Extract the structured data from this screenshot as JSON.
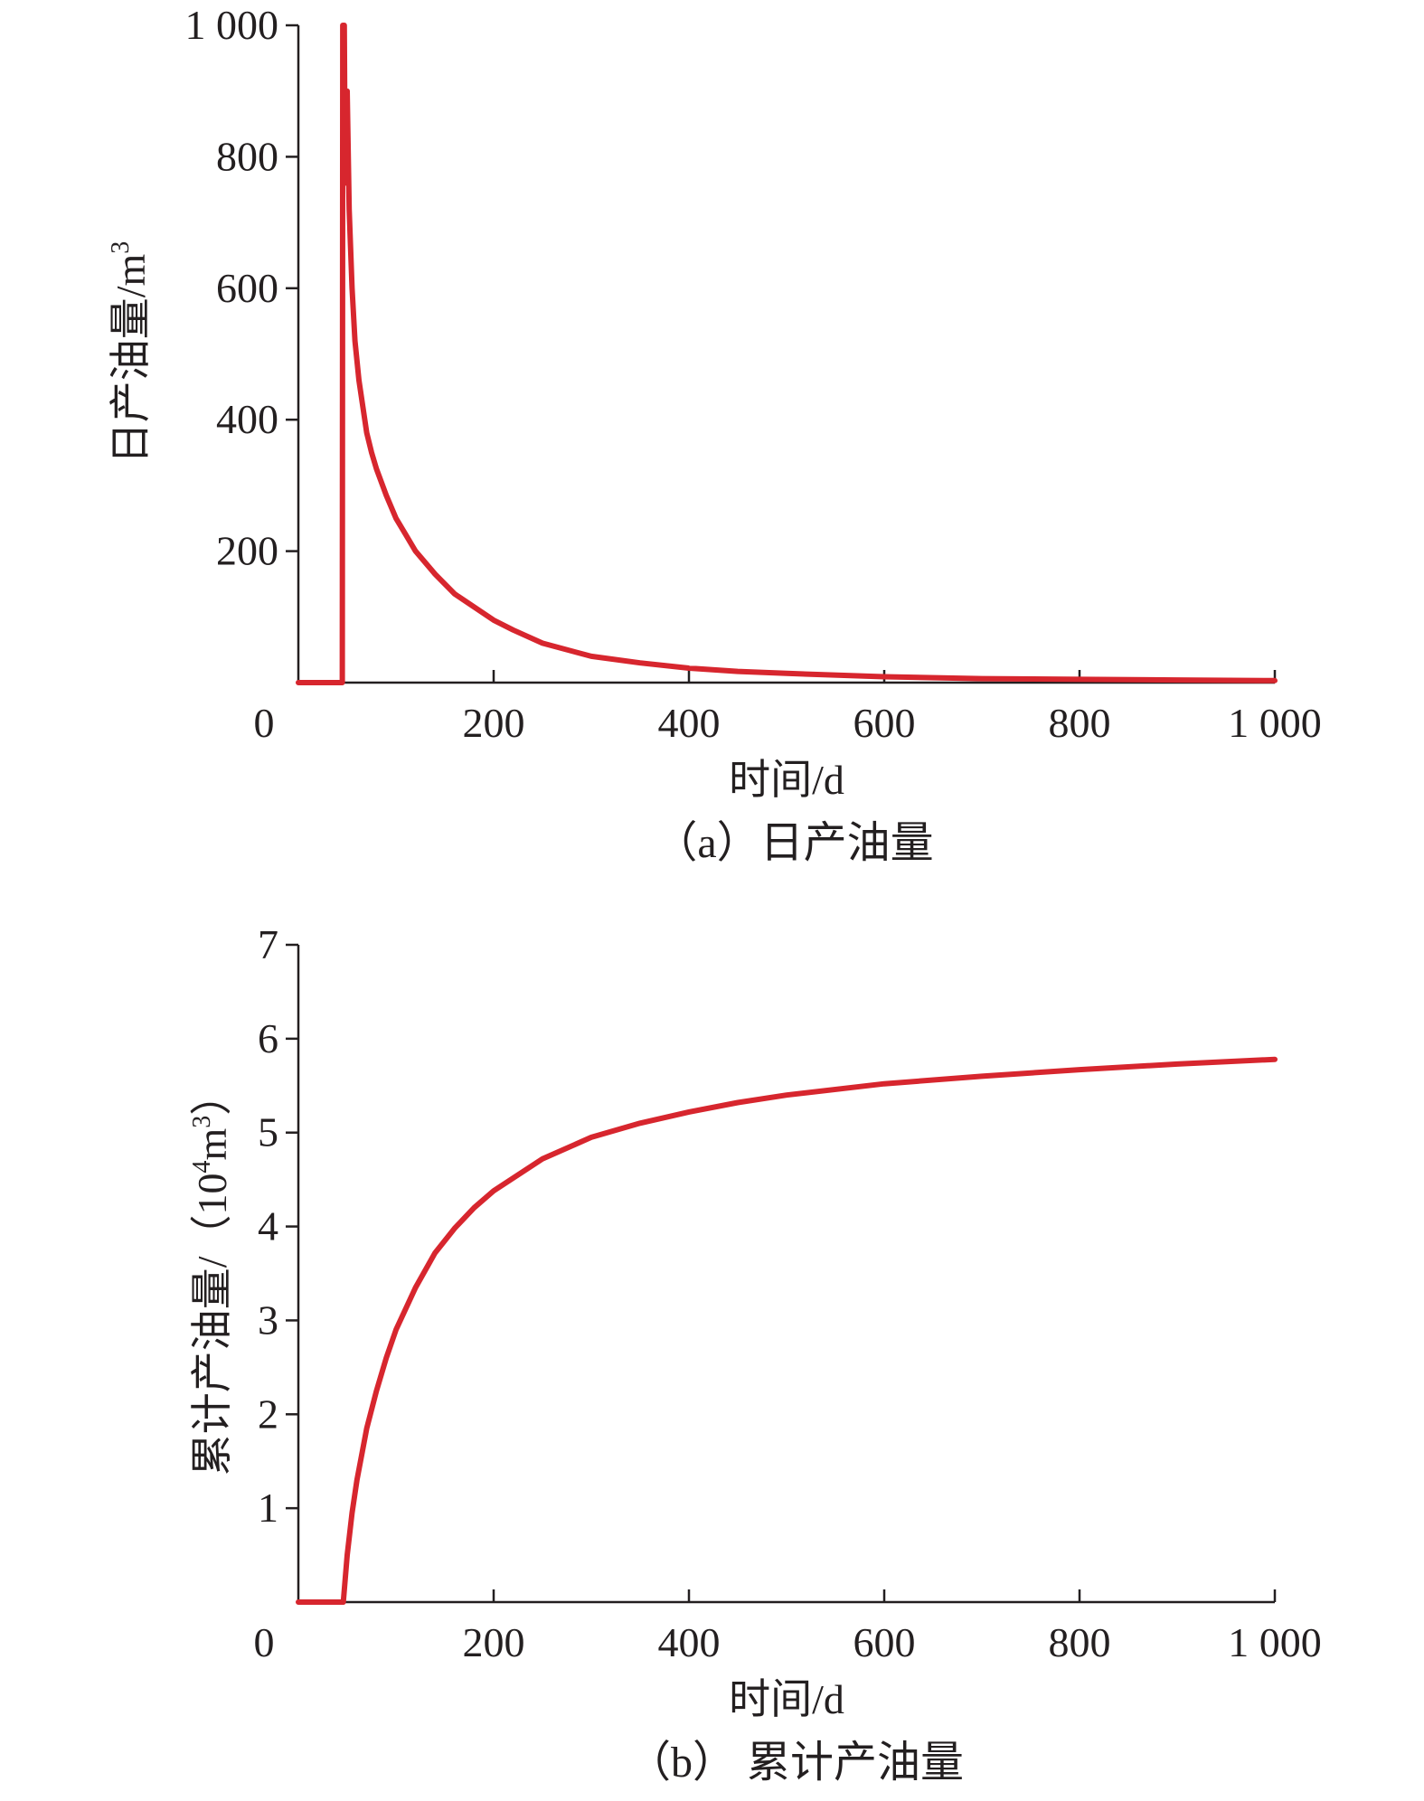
{
  "chart_data": [
    {
      "id": "a",
      "type": "line",
      "xlabel": "时间/d",
      "ylabel": "日产油量/m",
      "ylabel_sup": "3",
      "ylabel_suffix": "",
      "caption": "（a）日产油量",
      "xlim": [
        0,
        1000
      ],
      "ylim": [
        0,
        1000
      ],
      "x_ticks": [
        0,
        200,
        400,
        600,
        800,
        1000
      ],
      "x_tick_labels": [
        "0",
        "200",
        "400",
        "600",
        "800",
        "1 000"
      ],
      "y_ticks": [
        200,
        400,
        600,
        800,
        1000
      ],
      "y_tick_labels": [
        "200",
        "400",
        "600",
        "800",
        "1 000"
      ],
      "grid": false,
      "series_color": "#d7262e",
      "series": [
        {
          "x": [
            0,
            45,
            45.5,
            46,
            47,
            48,
            50,
            52,
            55,
            58,
            62,
            66,
            70,
            75,
            80,
            90,
            100,
            110,
            120,
            140,
            160,
            180,
            200,
            220,
            250,
            300,
            350,
            400,
            450,
            500,
            600,
            700,
            800,
            900,
            1000
          ],
          "y": [
            0,
            0,
            1000,
            1000,
            1000,
            760,
            900,
            720,
            600,
            520,
            460,
            420,
            380,
            350,
            325,
            285,
            250,
            225,
            200,
            165,
            135,
            115,
            95,
            80,
            60,
            40,
            30,
            22,
            17,
            14,
            9,
            6,
            5,
            4,
            3
          ]
        }
      ]
    },
    {
      "id": "b",
      "type": "line",
      "xlabel": "时间/d",
      "ylabel": "累计产油量/（10",
      "ylabel_sup": "4",
      "ylabel_suffix": "m",
      "ylabel_sup2": "3",
      "ylabel_end": "）",
      "caption": "（b） 累计产油量",
      "xlim": [
        0,
        1000
      ],
      "ylim": [
        0,
        7
      ],
      "x_ticks": [
        0,
        200,
        400,
        600,
        800,
        1000
      ],
      "x_tick_labels": [
        "0",
        "200",
        "400",
        "600",
        "800",
        "1 000"
      ],
      "y_ticks": [
        1,
        2,
        3,
        4,
        5,
        6,
        7
      ],
      "y_tick_labels": [
        "1",
        "2",
        "3",
        "4",
        "5",
        "6",
        "7"
      ],
      "grid": false,
      "series_color": "#d7262e",
      "series": [
        {
          "x": [
            0,
            46,
            50,
            55,
            60,
            70,
            80,
            90,
            100,
            120,
            140,
            160,
            180,
            200,
            250,
            300,
            350,
            400,
            450,
            500,
            600,
            700,
            800,
            900,
            1000
          ],
          "y": [
            0,
            0,
            0.5,
            0.95,
            1.3,
            1.85,
            2.25,
            2.6,
            2.9,
            3.35,
            3.72,
            3.98,
            4.2,
            4.38,
            4.72,
            4.95,
            5.1,
            5.22,
            5.32,
            5.4,
            5.52,
            5.6,
            5.67,
            5.73,
            5.78
          ]
        }
      ]
    }
  ]
}
